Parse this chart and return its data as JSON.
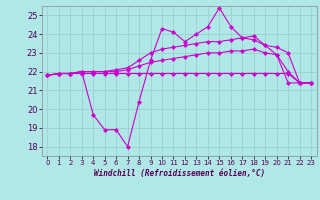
{
  "xlabel": "Windchill (Refroidissement éolien,°C)",
  "background_color": "#b0e8e8",
  "line_color": "#cc00cc",
  "xlim": [
    -0.5,
    23.5
  ],
  "ylim": [
    17.5,
    25.5
  ],
  "xticks": [
    0,
    1,
    2,
    3,
    4,
    5,
    6,
    7,
    8,
    9,
    10,
    11,
    12,
    13,
    14,
    15,
    16,
    17,
    18,
    19,
    20,
    21,
    22,
    23
  ],
  "yticks": [
    18,
    19,
    20,
    21,
    22,
    23,
    24,
    25
  ],
  "grid_color": "#9ecece",
  "series": {
    "line1_flat": [
      21.8,
      21.9,
      21.9,
      21.9,
      21.9,
      21.9,
      21.9,
      21.9,
      21.9,
      21.9,
      21.9,
      21.9,
      21.9,
      21.9,
      21.9,
      21.9,
      21.9,
      21.9,
      21.9,
      21.9,
      21.9,
      21.9,
      21.4,
      21.4
    ],
    "line2_gentle": [
      21.8,
      21.9,
      21.9,
      22.0,
      22.0,
      22.0,
      22.0,
      22.1,
      22.3,
      22.5,
      22.6,
      22.7,
      22.8,
      22.9,
      23.0,
      23.0,
      23.1,
      23.1,
      23.2,
      23.0,
      22.9,
      22.0,
      21.4,
      21.4
    ],
    "line3_smooth": [
      21.8,
      21.9,
      21.9,
      22.0,
      22.0,
      22.0,
      22.1,
      22.2,
      22.6,
      23.0,
      23.2,
      23.3,
      23.4,
      23.5,
      23.6,
      23.6,
      23.7,
      23.8,
      23.9,
      23.4,
      22.9,
      21.4,
      21.4,
      21.4
    ],
    "line4_zigzag": [
      21.8,
      21.9,
      21.9,
      22.0,
      19.7,
      18.9,
      18.9,
      18.0,
      20.4,
      22.6,
      24.3,
      24.1,
      23.6,
      24.0,
      24.4,
      25.4,
      24.4,
      23.8,
      23.7,
      23.4,
      23.3,
      23.0,
      21.4,
      21.4
    ]
  }
}
